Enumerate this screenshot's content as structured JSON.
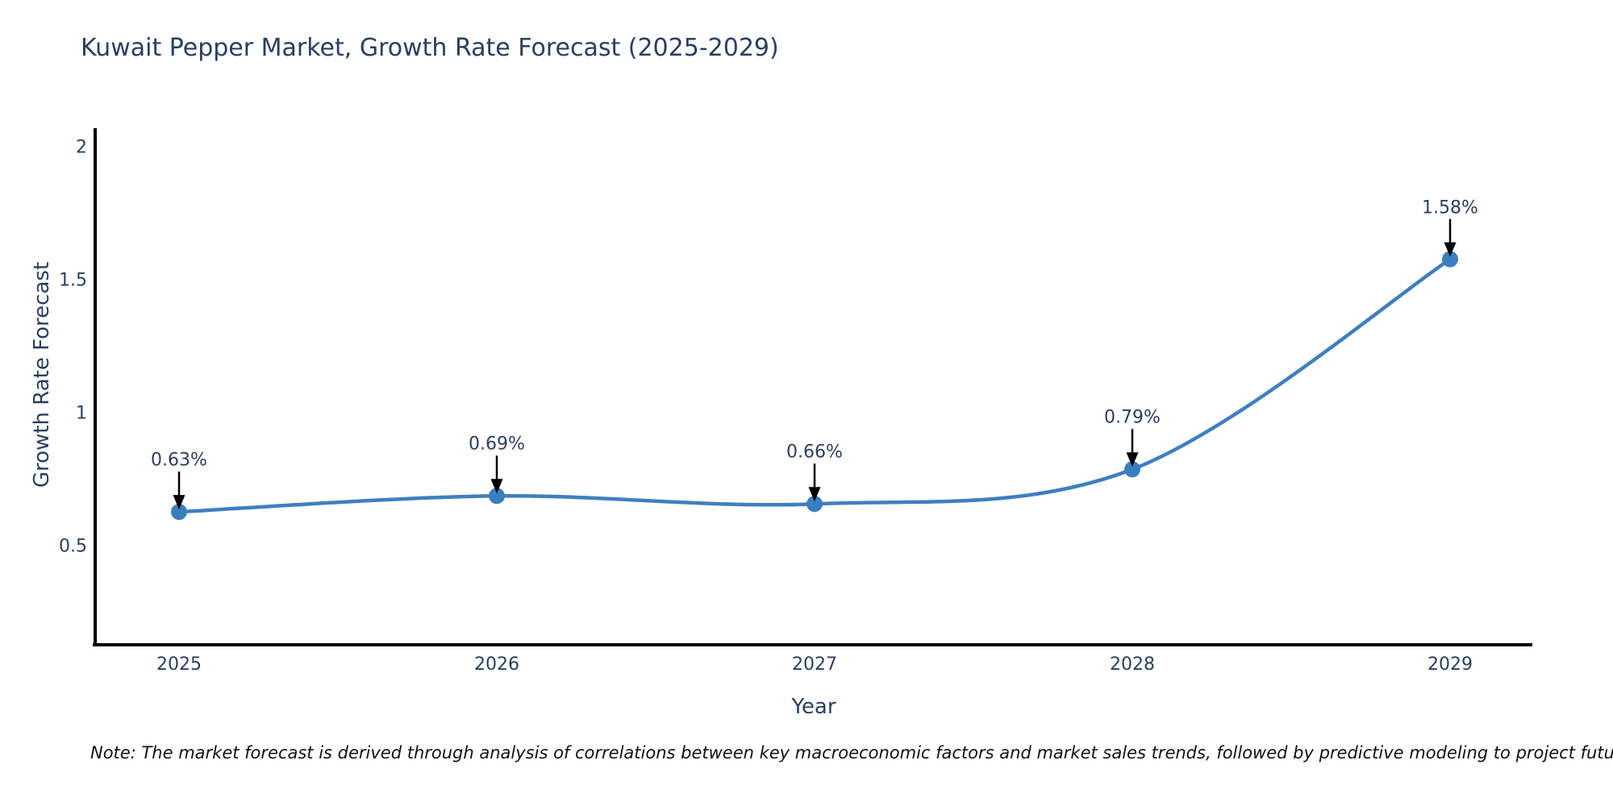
{
  "title": "Kuwait Pepper Market, Growth Rate Forecast (2025-2029)",
  "note": "Note: The market forecast is derived through analysis of correlations between key macroeconomic factors and market sales trends, followed by predictive modeling to project future sales",
  "chart_data": {
    "type": "line",
    "line_shape": "spline",
    "title": "Kuwait Pepper Market, Growth Rate Forecast (2025-2029)",
    "xlabel": "Year",
    "ylabel": "Growth Rate Forecast",
    "categories": [
      "2025",
      "2026",
      "2027",
      "2028",
      "2029"
    ],
    "series": [
      {
        "name": "Growth Rate Forecast",
        "values": [
          0.63,
          0.69,
          0.66,
          0.79,
          1.58
        ]
      }
    ],
    "point_labels": [
      "0.63%",
      "0.69%",
      "0.66%",
      "0.79%",
      "1.58%"
    ],
    "yticks": [
      0.5,
      1,
      1.5,
      2
    ],
    "ylim": [
      0.14,
      2.08
    ],
    "grid": false,
    "legend": "none",
    "colors": {
      "line": "#3f7fbf",
      "marker": "#3a7ebf",
      "text": "#2a3f5f",
      "axis": "#000000",
      "arrow": "#000000",
      "note": "#111111"
    }
  }
}
